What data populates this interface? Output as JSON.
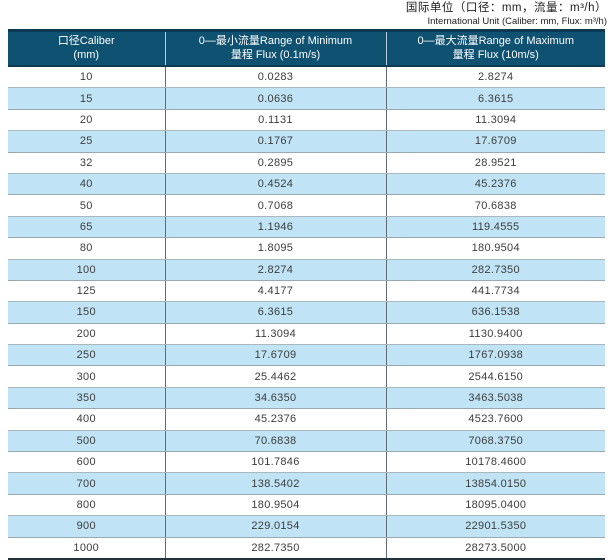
{
  "unit_note": {
    "cn": "国际单位（口径：mm，流量：m³/h）",
    "en": "International Unit (Caliber: mm, Flux: m³/h)"
  },
  "table": {
    "columns": [
      {
        "line1": "口径Caliber",
        "line2": "(mm)"
      },
      {
        "line1": "0—最小流量Range of Minimum",
        "line2": "量程 Flux (0.1m/s)"
      },
      {
        "line1": "0—最大流量Range of Maximum",
        "line2": "量程 Flux (10m/s)"
      }
    ],
    "rows": [
      [
        "10",
        "0.0283",
        "2.8274"
      ],
      [
        "15",
        "0.0636",
        "6.3615"
      ],
      [
        "20",
        "0.1131",
        "11.3094"
      ],
      [
        "25",
        "0.1767",
        "17.6709"
      ],
      [
        "32",
        "0.2895",
        "28.9521"
      ],
      [
        "40",
        "0.4524",
        "45.2376"
      ],
      [
        "50",
        "0.7068",
        "70.6838"
      ],
      [
        "65",
        "1.1946",
        "119.4555"
      ],
      [
        "80",
        "1.8095",
        "180.9504"
      ],
      [
        "100",
        "2.8274",
        "282.7350"
      ],
      [
        "125",
        "4.4177",
        "441.7734"
      ],
      [
        "150",
        "6.3615",
        "636.1538"
      ],
      [
        "200",
        "11.3094",
        "1130.9400"
      ],
      [
        "250",
        "17.6709",
        "1767.0938"
      ],
      [
        "300",
        "25.4462",
        "2544.6150"
      ],
      [
        "350",
        "34.6350",
        "3463.5038"
      ],
      [
        "400",
        "45.2376",
        "4523.7600"
      ],
      [
        "500",
        "70.6838",
        "7068.3750"
      ],
      [
        "600",
        "101.7846",
        "10178.4600"
      ],
      [
        "700",
        "138.5402",
        "13854.0150"
      ],
      [
        "800",
        "180.9504",
        "18095.0400"
      ],
      [
        "900",
        "229.0154",
        "22901.5350"
      ],
      [
        "1000",
        "282.7350",
        "28273.5000"
      ]
    ]
  },
  "colors": {
    "header_bg": "#0f5170",
    "header_border": "#0b3a52",
    "row_alt_bg": "#c0e4f5",
    "row_border": "#98aab1",
    "column_divider": "#5f6d72",
    "body_text": "#3c3c3c"
  },
  "chart_data": {
    "type": "table",
    "title": "International Unit (Caliber: mm, Flux: m³/h)",
    "columns": [
      "口径Caliber (mm)",
      "0—最小流量量程 Range of Minimum Flux (0.1m/s)",
      "0—最大流量量程 Range of Maximum Flux (10m/s)"
    ],
    "rows": [
      [
        10,
        0.0283,
        2.8274
      ],
      [
        15,
        0.0636,
        6.3615
      ],
      [
        20,
        0.1131,
        11.3094
      ],
      [
        25,
        0.1767,
        17.6709
      ],
      [
        32,
        0.2895,
        28.9521
      ],
      [
        40,
        0.4524,
        45.2376
      ],
      [
        50,
        0.7068,
        70.6838
      ],
      [
        65,
        1.1946,
        119.4555
      ],
      [
        80,
        1.8095,
        180.9504
      ],
      [
        100,
        2.8274,
        282.735
      ],
      [
        125,
        4.4177,
        441.7734
      ],
      [
        150,
        6.3615,
        636.1538
      ],
      [
        200,
        11.3094,
        1130.94
      ],
      [
        250,
        17.6709,
        1767.0938
      ],
      [
        300,
        25.4462,
        2544.615
      ],
      [
        350,
        34.635,
        3463.5038
      ],
      [
        400,
        45.2376,
        4523.76
      ],
      [
        500,
        70.6838,
        7068.375
      ],
      [
        600,
        101.7846,
        10178.46
      ],
      [
        700,
        138.5402,
        13854.015
      ],
      [
        800,
        180.9504,
        18095.04
      ],
      [
        900,
        229.0154,
        22901.535
      ],
      [
        1000,
        282.735,
        28273.5
      ]
    ]
  }
}
